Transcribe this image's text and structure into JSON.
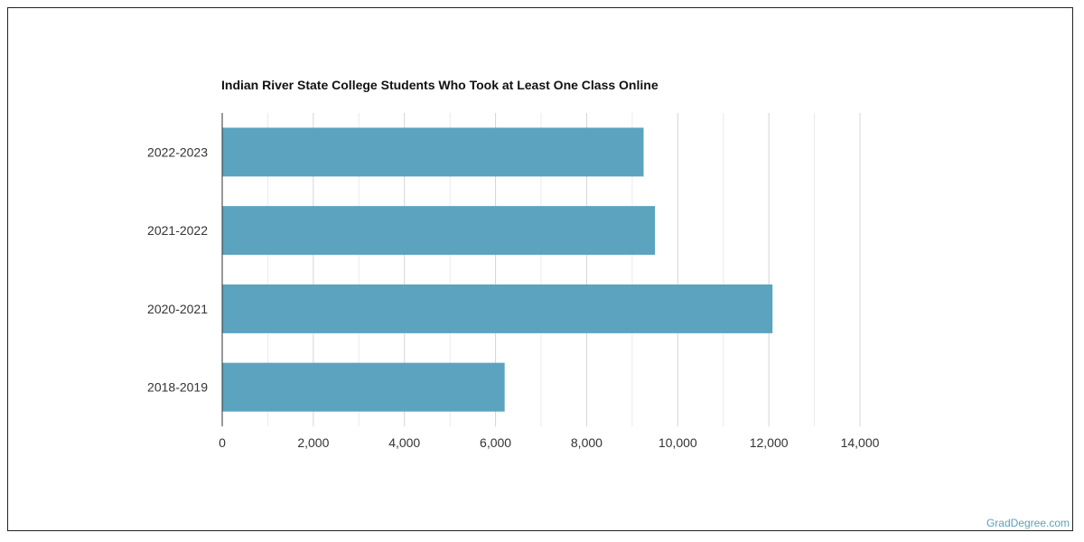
{
  "chart_data": {
    "type": "bar",
    "orientation": "horizontal",
    "title": "Indian River State College Students Who Took at Least One Class Online",
    "categories": [
      "2022-2023",
      "2021-2022",
      "2020-2021",
      "2018-2019"
    ],
    "values": [
      9250,
      9500,
      12080,
      6200
    ],
    "xlim": [
      0,
      14000
    ],
    "x_ticks": [
      0,
      2000,
      4000,
      6000,
      8000,
      10000,
      12000,
      14000
    ],
    "x_tick_labels": [
      "0",
      "2,000",
      "4,000",
      "6,000",
      "8,000",
      "10,000",
      "12,000",
      "14,000"
    ],
    "xlabel": "",
    "ylabel": "",
    "grid": true,
    "bar_color": "#5ba3be",
    "grid_color": "#dddddd"
  },
  "watermark": "GradDegree.com"
}
